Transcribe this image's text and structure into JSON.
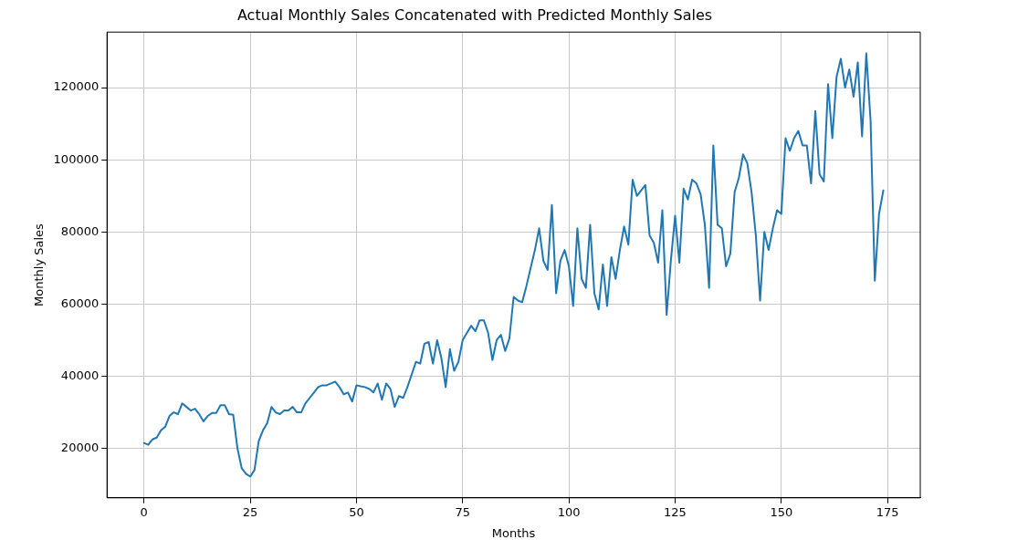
{
  "chart_data": {
    "type": "line",
    "title": "Actual Monthly Sales Concatenated with Predicted Monthly Sales",
    "xlabel": "Months",
    "ylabel": "Monthly Sales",
    "x": [
      0,
      1,
      2,
      3,
      4,
      5,
      6,
      7,
      8,
      9,
      10,
      11,
      12,
      13,
      14,
      15,
      16,
      17,
      18,
      19,
      20,
      21,
      22,
      23,
      24,
      25,
      26,
      27,
      28,
      29,
      30,
      31,
      32,
      33,
      34,
      35,
      36,
      37,
      38,
      39,
      40,
      41,
      42,
      43,
      44,
      45,
      46,
      47,
      48,
      49,
      50,
      51,
      52,
      53,
      54,
      55,
      56,
      57,
      58,
      59,
      60,
      61,
      62,
      63,
      64,
      65,
      66,
      67,
      68,
      69,
      70,
      71,
      72,
      73,
      74,
      75,
      76,
      77,
      78,
      79,
      80,
      81,
      82,
      83,
      84,
      85,
      86,
      87,
      88,
      89,
      90,
      91,
      92,
      93,
      94,
      95,
      96,
      97,
      98,
      99,
      100,
      101,
      102,
      103,
      104,
      105,
      106,
      107,
      108,
      109,
      110,
      111,
      112,
      113,
      114,
      115,
      116,
      117,
      118,
      119,
      120,
      121,
      122,
      123,
      124,
      125,
      126,
      127,
      128,
      129,
      130,
      131,
      132,
      133,
      134,
      135,
      136,
      137,
      138,
      139,
      140,
      141,
      142,
      143,
      144,
      145,
      146,
      147,
      148,
      149,
      150,
      151,
      152,
      153,
      154,
      155,
      156,
      157,
      158,
      159,
      160,
      161,
      162,
      163,
      164,
      165,
      166,
      167,
      168,
      169,
      170,
      171,
      172,
      173,
      174
    ],
    "series": [
      {
        "color": "#1f77b4",
        "values": [
          21500,
          21000,
          22500,
          23000,
          25000,
          26000,
          29000,
          30000,
          29500,
          32500,
          31500,
          30500,
          31000,
          29500,
          27500,
          29000,
          29800,
          29800,
          32000,
          32000,
          29500,
          29300,
          20000,
          14500,
          13000,
          12200,
          14000,
          22000,
          25000,
          27000,
          31500,
          30000,
          29500,
          30500,
          30500,
          31500,
          30000,
          30000,
          32500,
          34000,
          35500,
          37000,
          37500,
          37500,
          38000,
          38500,
          37000,
          35000,
          35500,
          33000,
          37500,
          37200,
          37000,
          36500,
          35500,
          38000,
          33500,
          38000,
          36500,
          31500,
          34500,
          34000,
          37000,
          40500,
          44000,
          43500,
          49000,
          49500,
          43500,
          50000,
          45000,
          37000,
          47500,
          41500,
          44000,
          50000,
          52000,
          54000,
          52500,
          55500,
          55500,
          52000,
          44500,
          50000,
          51500,
          47000,
          50500,
          62000,
          61000,
          60500,
          65000,
          70000,
          75000,
          81000,
          72000,
          69500,
          87500,
          63000,
          72000,
          75000,
          70500,
          59500,
          81000,
          67000,
          64500,
          82000,
          63000,
          58500,
          71000,
          59500,
          73000,
          67000,
          75000,
          81500,
          76500,
          94500,
          90000,
          91500,
          93000,
          79000,
          77000,
          71500,
          86000,
          57000,
          72000,
          84500,
          71500,
          92000,
          89000,
          94500,
          93500,
          90500,
          82000,
          64500,
          104000,
          82000,
          81000,
          70500,
          74000,
          91000,
          95000,
          101500,
          99000,
          91000,
          79000,
          61000,
          80000,
          75000,
          81000,
          86000,
          85000,
          106000,
          102500,
          106000,
          108000,
          104000,
          104000,
          93500,
          113500,
          96000,
          94000,
          121000,
          106000,
          123000,
          128000,
          120000,
          125000,
          117500,
          127000,
          106500,
          129500,
          111000,
          66500,
          85000,
          91500
        ]
      }
    ],
    "xlim": [
      -8.7,
      182.7
    ],
    "ylim": [
      6300,
      135400
    ],
    "xticks": [
      0,
      25,
      50,
      75,
      100,
      125,
      150,
      175
    ],
    "yticks": [
      20000,
      40000,
      60000,
      80000,
      100000,
      120000
    ],
    "grid": true,
    "marker": "none",
    "line_style": "solid"
  }
}
